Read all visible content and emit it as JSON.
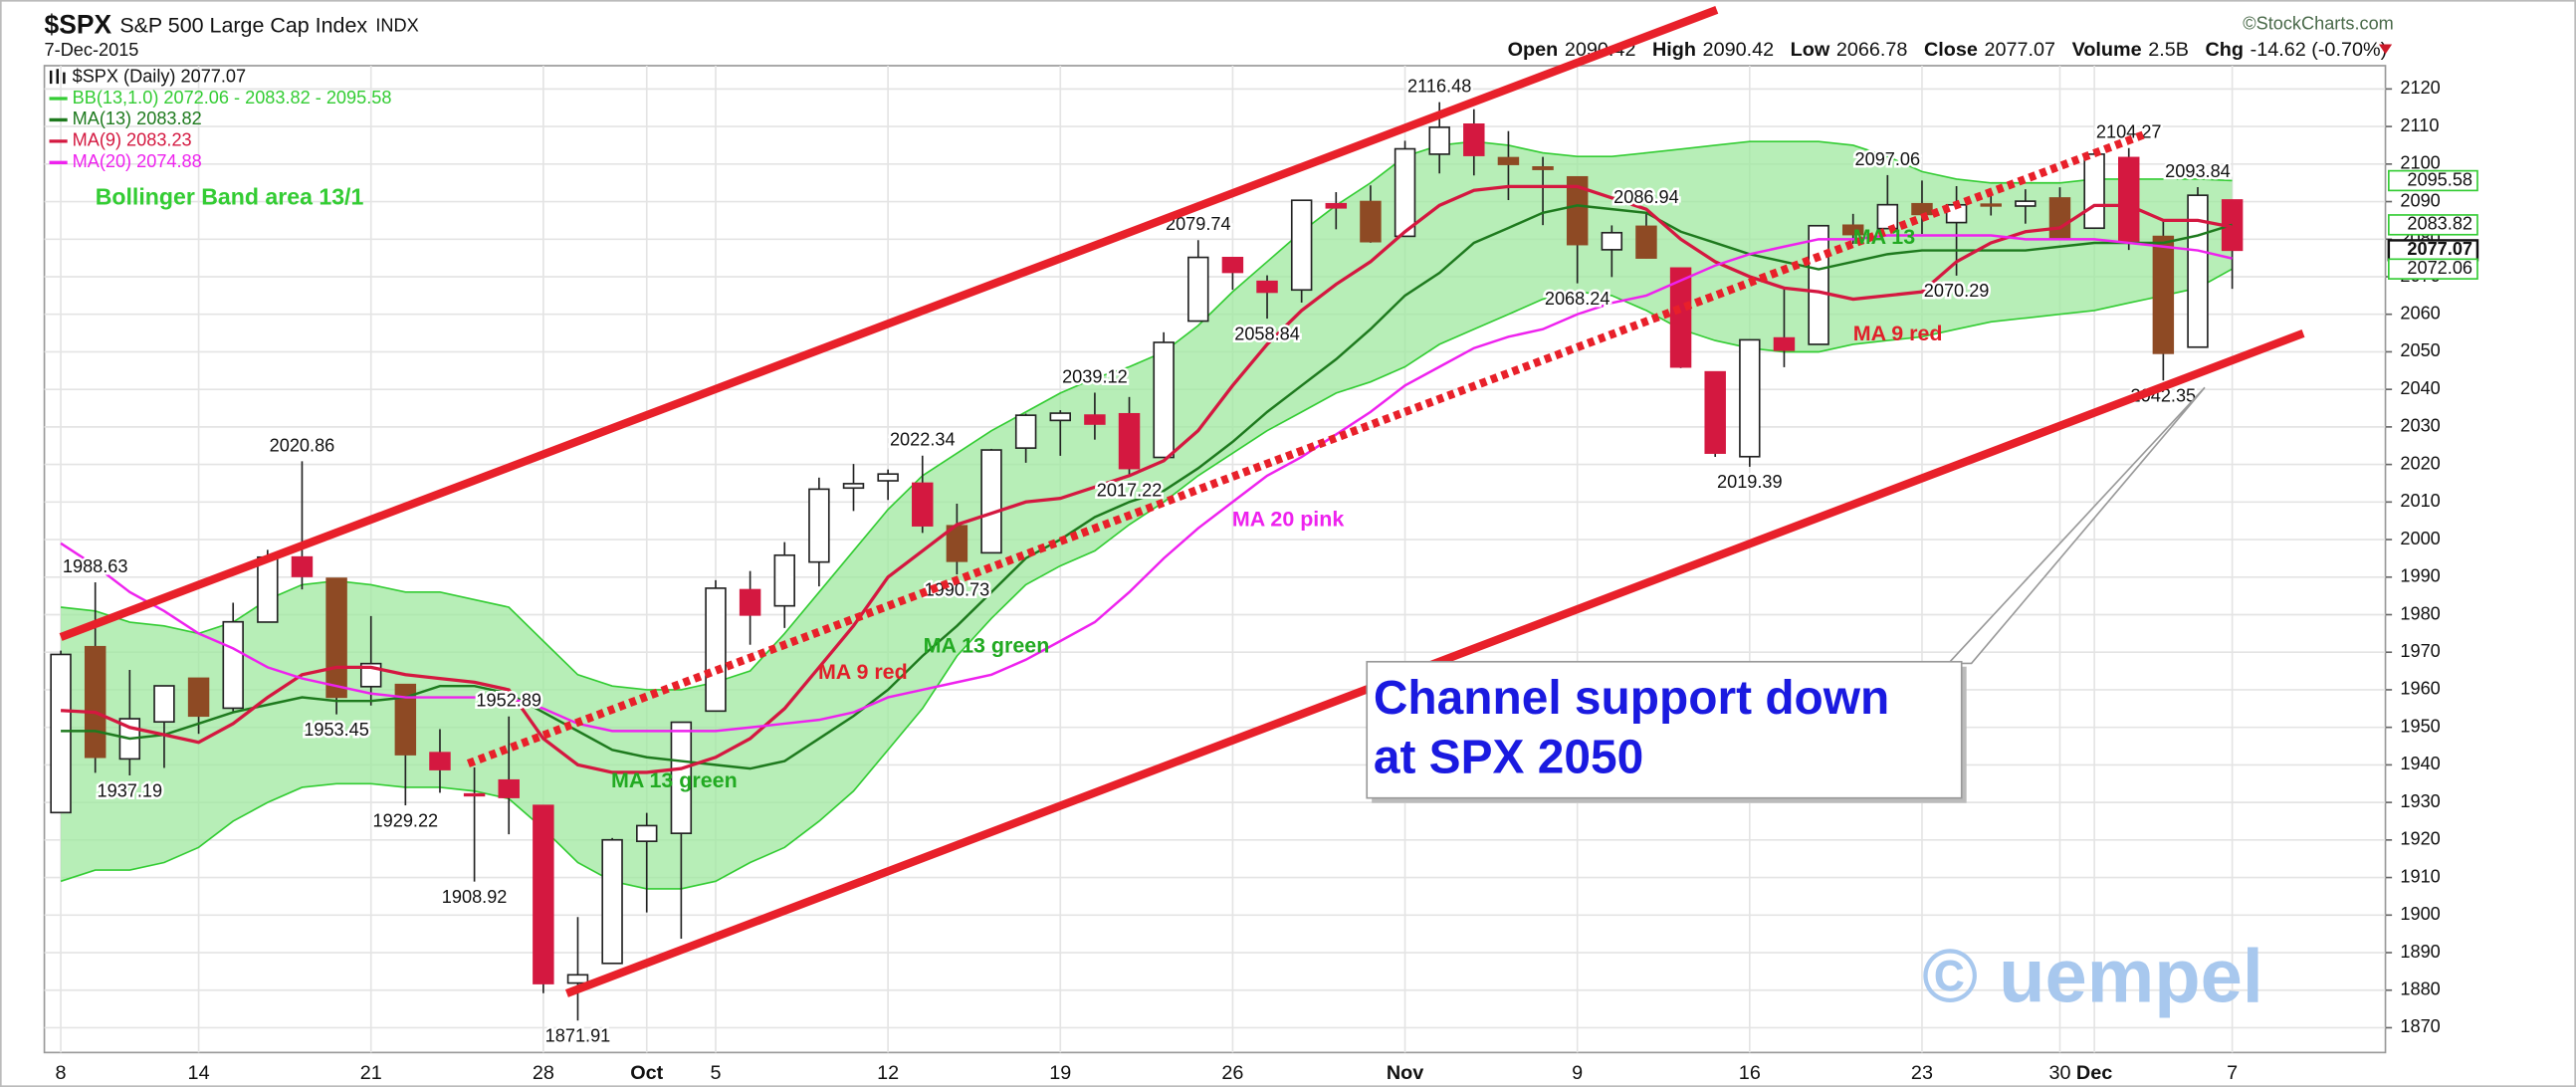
{
  "chart_data": {
    "type": "candlestick",
    "title": "$SPX",
    "subtitle": "S&P 500 Large Cap Index",
    "exchange": "INDX",
    "date": "7-Dec-2015",
    "source": "©StockCharts.com",
    "quote": [
      {
        "label": "Open",
        "value": 2090.42
      },
      {
        "label": "High",
        "value": 2090.42
      },
      {
        "label": "Low",
        "value": 2066.78
      },
      {
        "label": "Close",
        "value": 2077.07
      },
      {
        "label": "Volume",
        "value": "2.5B"
      },
      {
        "label": "Chg",
        "value": "-14.62 (-0.70%)"
      }
    ],
    "categories": [
      "8",
      null,
      null,
      null,
      "14",
      null,
      null,
      null,
      null,
      "21",
      null,
      null,
      null,
      null,
      "28",
      null,
      null,
      "Oct",
      null,
      "5",
      null,
      null,
      null,
      null,
      "12",
      null,
      null,
      null,
      null,
      "19",
      null,
      null,
      null,
      null,
      "26",
      null,
      null,
      null,
      null,
      "Nov",
      null,
      null,
      null,
      null,
      "9",
      null,
      null,
      null,
      null,
      "16",
      null,
      null,
      null,
      null,
      "23",
      null,
      null,
      null,
      "30",
      "Dec",
      null,
      null,
      null,
      "7"
    ],
    "ylim": [
      1863.4,
      2126.2
    ],
    "yticks": [
      1870,
      1880,
      1890,
      1900,
      1910,
      1920,
      1930,
      1940,
      1950,
      1960,
      1970,
      1980,
      1990,
      2000,
      2010,
      2020,
      2030,
      2040,
      2050,
      2060,
      2070,
      2080,
      2090,
      2100,
      2110,
      2120
    ],
    "grid": true,
    "candles": {
      "name": "$SPX (Daily) 2077.07",
      "open": [
        1927.3,
        1971.45,
        1941.59,
        1951.45,
        1963.06,
        1955.1,
        1978.02,
        1995.33,
        1989.66,
        1960.84,
        1961.39,
        1943.24,
        1932.24,
        1935.93,
        1929.18,
        1881.9,
        1887.14,
        1919.65,
        1921.77,
        1954.33,
        1986.63,
        1982.34,
        1994.01,
        2013.73,
        2015.65,
        2015,
        2003.66,
        1996.47,
        2024.37,
        2031.73,
        2033.13,
        2033.47,
        2021.88,
        2058.19,
        2075.08,
        2068.75,
        2066.48,
        2088.35,
        2090,
        2080.76,
        2102.63,
        2110.6,
        2101.68,
        2098.6,
        2096.56,
        2077.19,
        2083.41,
        2072.29,
        2044.64,
        2022.08,
        2053.67,
        2051.99,
        2083.7,
        2082.82,
        2089.41,
        2084.42,
        2089.3,
        2088.82,
        2090.95,
        2082.93,
        2101.71,
        2080.71,
        2051.24,
        2090.42
      ],
      "high": [
        1970.42,
        1988.63,
        1965.29,
        1961.05,
        1963.06,
        1983.19,
        1997.26,
        2020.86,
        1989.66,
        1979.64,
        1961.39,
        1949.52,
        1939.33,
        1952.89,
        1929.18,
        1899.48,
        1920.53,
        1927.21,
        1951.36,
        1989.17,
        1991.62,
        1999.31,
        2016.5,
        2020.13,
        2018.66,
        2022.34,
        2009.56,
        2024.15,
        2033.54,
        2034.45,
        2039.12,
        2037.97,
        2055.2,
        2079.74,
        2075.14,
        2070.37,
        2090.35,
        2092.52,
        2094.32,
        2106.2,
        2116.48,
        2114.59,
        2108.78,
        2101.91,
        2096.56,
        2083.67,
        2086.94,
        2072.29,
        2044.64,
        2053.22,
        2066.69,
        2083.58,
        2086.74,
        2097.06,
        2095.61,
        2094.12,
        2093,
        2093.29,
        2093.81,
        2103.37,
        2104.27,
        2085,
        2093.84,
        2090.42
      ],
      "low": [
        1927.3,
        1937.88,
        1937.19,
        1939.19,
        1948.27,
        1954.3,
        1977.93,
        1986.73,
        1953.45,
        1955.8,
        1929.22,
        1932.57,
        1908.92,
        1921.5,
        1879.21,
        1871.91,
        1887.14,
        1900.7,
        1893.7,
        1954.33,
        1971.99,
        1976.44,
        1987.53,
        2007.61,
        2010.55,
        2001.78,
        1990.73,
        1996.47,
        2020.46,
        2022.31,
        2026.61,
        2017.22,
        2021.88,
        2058.19,
        2066.53,
        2058.84,
        2063.11,
        2082.63,
        2079.05,
        2080.76,
        2097.51,
        2096.98,
        2090.41,
        2083.74,
        2068.24,
        2069.91,
        2074.85,
        2045.66,
        2022.02,
        2019.39,
        2045.9,
        2051.99,
        2078.76,
        2082.82,
        2081.39,
        2070.29,
        2086.3,
        2084.13,
        2080.41,
        2082.93,
        2077.11,
        2042.35,
        2051.24,
        2066.78
      ],
      "close": [
        1969.41,
        1942.04,
        1952.29,
        1961.05,
        1953.03,
        1978.09,
        1995.31,
        1990.2,
        1958.03,
        1966.97,
        1942.74,
        1938.76,
        1932.24,
        1931.34,
        1881.77,
        1884.09,
        1920.03,
        1923.82,
        1951.36,
        1987.05,
        1979.92,
        1995.83,
        2013.43,
        2014.89,
        2017.46,
        2003.69,
        1994.24,
        2023.86,
        2033.11,
        2033.66,
        2030.77,
        2018.94,
        2052.51,
        2075.15,
        2071.18,
        2065.89,
        2090.35,
        2089.41,
        2079.36,
        2104.05,
        2109.79,
        2102.31,
        2099.93,
        2099.2,
        2078.58,
        2081.72,
        2075,
        2045.97,
        2023.04,
        2053.19,
        2050.44,
        2083.58,
        2081.24,
        2089.17,
        2086.59,
        2089.14,
        2088.87,
        2090.11,
        2080.41,
        2102.63,
        2079.51,
        2049.62,
        2091.69,
        2077.07
      ],
      "colors": [
        "#ffffff",
        "#8e4a24",
        "#ffffff",
        "#ffffff",
        "#8e4a24",
        "#ffffff",
        "#ffffff",
        "#d41840",
        "#8e4a24",
        "#ffffff",
        "#8e4a24",
        "#d41840",
        "#d41840",
        "#d41840",
        "#d41840",
        "#ffffff",
        "#ffffff",
        "#ffffff",
        "#ffffff",
        "#ffffff",
        "#d41840",
        "#ffffff",
        "#ffffff",
        "#ffffff",
        "#ffffff",
        "#d41840",
        "#8e4a24",
        "#ffffff",
        "#ffffff",
        "#ffffff",
        "#d41840",
        "#d41840",
        "#ffffff",
        "#ffffff",
        "#d41840",
        "#d41840",
        "#ffffff",
        "#d41840",
        "#8e4a24",
        "#ffffff",
        "#ffffff",
        "#d41840",
        "#8e4a24",
        "#8e4a24",
        "#8e4a24",
        "#ffffff",
        "#8e4a24",
        "#d41840",
        "#d41840",
        "#ffffff",
        "#d41840",
        "#ffffff",
        "#8e4a24",
        "#ffffff",
        "#8e4a24",
        "#ffffff",
        "#8e4a24",
        "#ffffff",
        "#8e4a24",
        "#ffffff",
        "#d41840",
        "#8e4a24",
        "#ffffff",
        "#d41840"
      ]
    },
    "overlays": [
      {
        "name": "BB(13,1.0) 2072.06 - 2083.82 - 2095.58",
        "color": "#33cc33",
        "fill": "#9fe89f",
        "upper": [
          1982,
          1981,
          1978,
          1977,
          1975,
          1978,
          1984,
          1988,
          1989,
          1988,
          1986,
          1986,
          1984,
          1982,
          1973,
          1964,
          1961,
          1960,
          1960,
          1962,
          1965,
          1975,
          1986,
          1997,
          2008,
          2017,
          2023,
          2029,
          2034,
          2039,
          2043,
          2046,
          2050,
          2057,
          2066,
          2074,
          2082,
          2089,
          2095,
          2102,
          2105,
          2106,
          2105,
          2103,
          2102,
          2102,
          2103,
          2104,
          2105,
          2106,
          2106,
          2106,
          2105,
          2102,
          2098,
          2096,
          2095,
          2095,
          2095,
          2096,
          2096,
          2096,
          2096,
          2095.58
        ],
        "lower": [
          1909,
          1912,
          1912,
          1914,
          1918,
          1925,
          1930,
          1934,
          1935,
          1935,
          1934,
          1934,
          1933,
          1931,
          1923,
          1914,
          1909,
          1907,
          1907,
          1909,
          1914,
          1918,
          1925,
          1933,
          1944,
          1955,
          1969,
          1979,
          1988,
          1993,
          1997,
          2004,
          2010,
          2017,
          2023,
          2029,
          2034,
          2039,
          2042,
          2046,
          2052,
          2056,
          2060,
          2064,
          2066,
          2065,
          2061,
          2056,
          2053,
          2051,
          2050,
          2050,
          2052,
          2053,
          2054,
          2056,
          2058,
          2059,
          2060,
          2061,
          2063,
          2065,
          2067,
          2072.06
        ]
      },
      {
        "name": "MA(13) 2083.82",
        "color": "#1e7a1e",
        "values": [
          1949,
          1949,
          1947,
          1948,
          1951,
          1954,
          1956,
          1958,
          1957,
          1957,
          1958,
          1961,
          1961,
          1959,
          1954,
          1949,
          1944,
          1942,
          1941,
          1940,
          1939,
          1941,
          1947,
          1953,
          1960,
          1969,
          1977,
          1986,
          1995,
          2000,
          2006,
          2010,
          2013,
          2019,
          2026,
          2034,
          2041,
          2048,
          2056,
          2065,
          2071,
          2079,
          2083,
          2087,
          2089,
          2088,
          2087,
          2082,
          2079,
          2076,
          2074,
          2072,
          2074,
          2076,
          2077,
          2077,
          2077,
          2077,
          2078,
          2079,
          2079,
          2079,
          2081,
          2083.82
        ]
      },
      {
        "name": "MA(9) 2083.23",
        "color": "#d41840",
        "values": [
          1954.5,
          1954,
          1950,
          1948,
          1946,
          1951,
          1958,
          1964,
          1966,
          1966,
          1964,
          1963,
          1962,
          1960,
          1947,
          1940,
          1938,
          1938,
          1939,
          1942,
          1947,
          1955,
          1966,
          1977,
          1990,
          1997,
          2004,
          2007,
          2010,
          2011,
          2014,
          2017,
          2021,
          2029,
          2041,
          2052,
          2061,
          2068,
          2074,
          2082,
          2089,
          2093,
          2094,
          2094,
          2094,
          2091,
          2088,
          2080,
          2074,
          2070,
          2067,
          2066,
          2064,
          2065,
          2066,
          2074,
          2079,
          2082,
          2083,
          2089,
          2089,
          2085,
          2085,
          2083.23
        ]
      },
      {
        "name": "MA(20) 2074.88",
        "color": "#ee22ee",
        "values": [
          1999,
          1993,
          1986,
          1981,
          1975,
          1971,
          1966,
          1963,
          1961,
          1959,
          1958,
          1958,
          1958,
          1958,
          1955,
          1951,
          1949,
          1949,
          1949,
          1949,
          1950,
          1951,
          1952,
          1954,
          1958,
          1960,
          1962,
          1964,
          1968,
          1973,
          1978,
          1986,
          1995,
          2003,
          2010,
          2017,
          2022,
          2028,
          2034,
          2041,
          2046,
          2051,
          2054,
          2056,
          2060,
          2063,
          2065,
          2069,
          2073,
          2076,
          2078,
          2080,
          2080,
          2081,
          2081,
          2081,
          2081,
          2080,
          2080,
          2080,
          2079,
          2078,
          2077,
          2074.88
        ]
      }
    ],
    "annotations": [
      "Bollinger Band area 13/1",
      "MA 13 green",
      "MA 13 green",
      "MA 9 red",
      "MA 20 pink",
      "MA 13",
      "MA 9 red"
    ],
    "callout": [
      "Channel support down",
      "at SPX 2050"
    ],
    "watermark": "© uempel"
  }
}
